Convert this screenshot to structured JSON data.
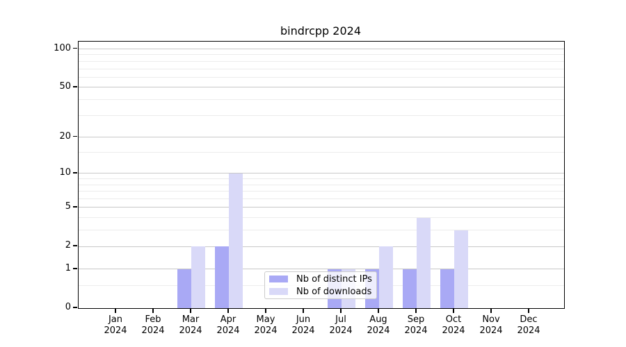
{
  "title": "bindrcpp 2024",
  "chart_data": {
    "type": "bar",
    "title": "bindrcpp 2024",
    "categories": [
      {
        "month": "Jan",
        "year": "2024"
      },
      {
        "month": "Feb",
        "year": "2024"
      },
      {
        "month": "Mar",
        "year": "2024"
      },
      {
        "month": "Apr",
        "year": "2024"
      },
      {
        "month": "May",
        "year": "2024"
      },
      {
        "month": "Jun",
        "year": "2024"
      },
      {
        "month": "Jul",
        "year": "2024"
      },
      {
        "month": "Aug",
        "year": "2024"
      },
      {
        "month": "Sep",
        "year": "2024"
      },
      {
        "month": "Oct",
        "year": "2024"
      },
      {
        "month": "Nov",
        "year": "2024"
      },
      {
        "month": "Dec",
        "year": "2024"
      }
    ],
    "series": [
      {
        "name": "Nb of distinct IPs",
        "color": "#a9a9f5",
        "values": [
          0,
          0,
          1,
          2,
          0,
          0,
          1,
          1,
          1,
          1,
          0,
          0
        ]
      },
      {
        "name": "Nb of downloads",
        "color": "#d9d9f8",
        "values": [
          0,
          0,
          2,
          10,
          0,
          0,
          1,
          2,
          4,
          3,
          0,
          0
        ]
      }
    ],
    "yscale": "log1p",
    "yticks": [
      0,
      1,
      2,
      5,
      10,
      20,
      50,
      100
    ],
    "minor_yticks": [
      0.5,
      3,
      4,
      6,
      7,
      8,
      9,
      15,
      30,
      40,
      60,
      70,
      80,
      90
    ],
    "ylim": [
      0,
      114
    ],
    "xlabel": "",
    "ylabel": "",
    "grid": true,
    "legend_position": "lower center"
  },
  "colors": {
    "grid_major": "#c8c8c8",
    "grid_minor": "#ececec",
    "axis": "#000000",
    "background": "#ffffff"
  }
}
